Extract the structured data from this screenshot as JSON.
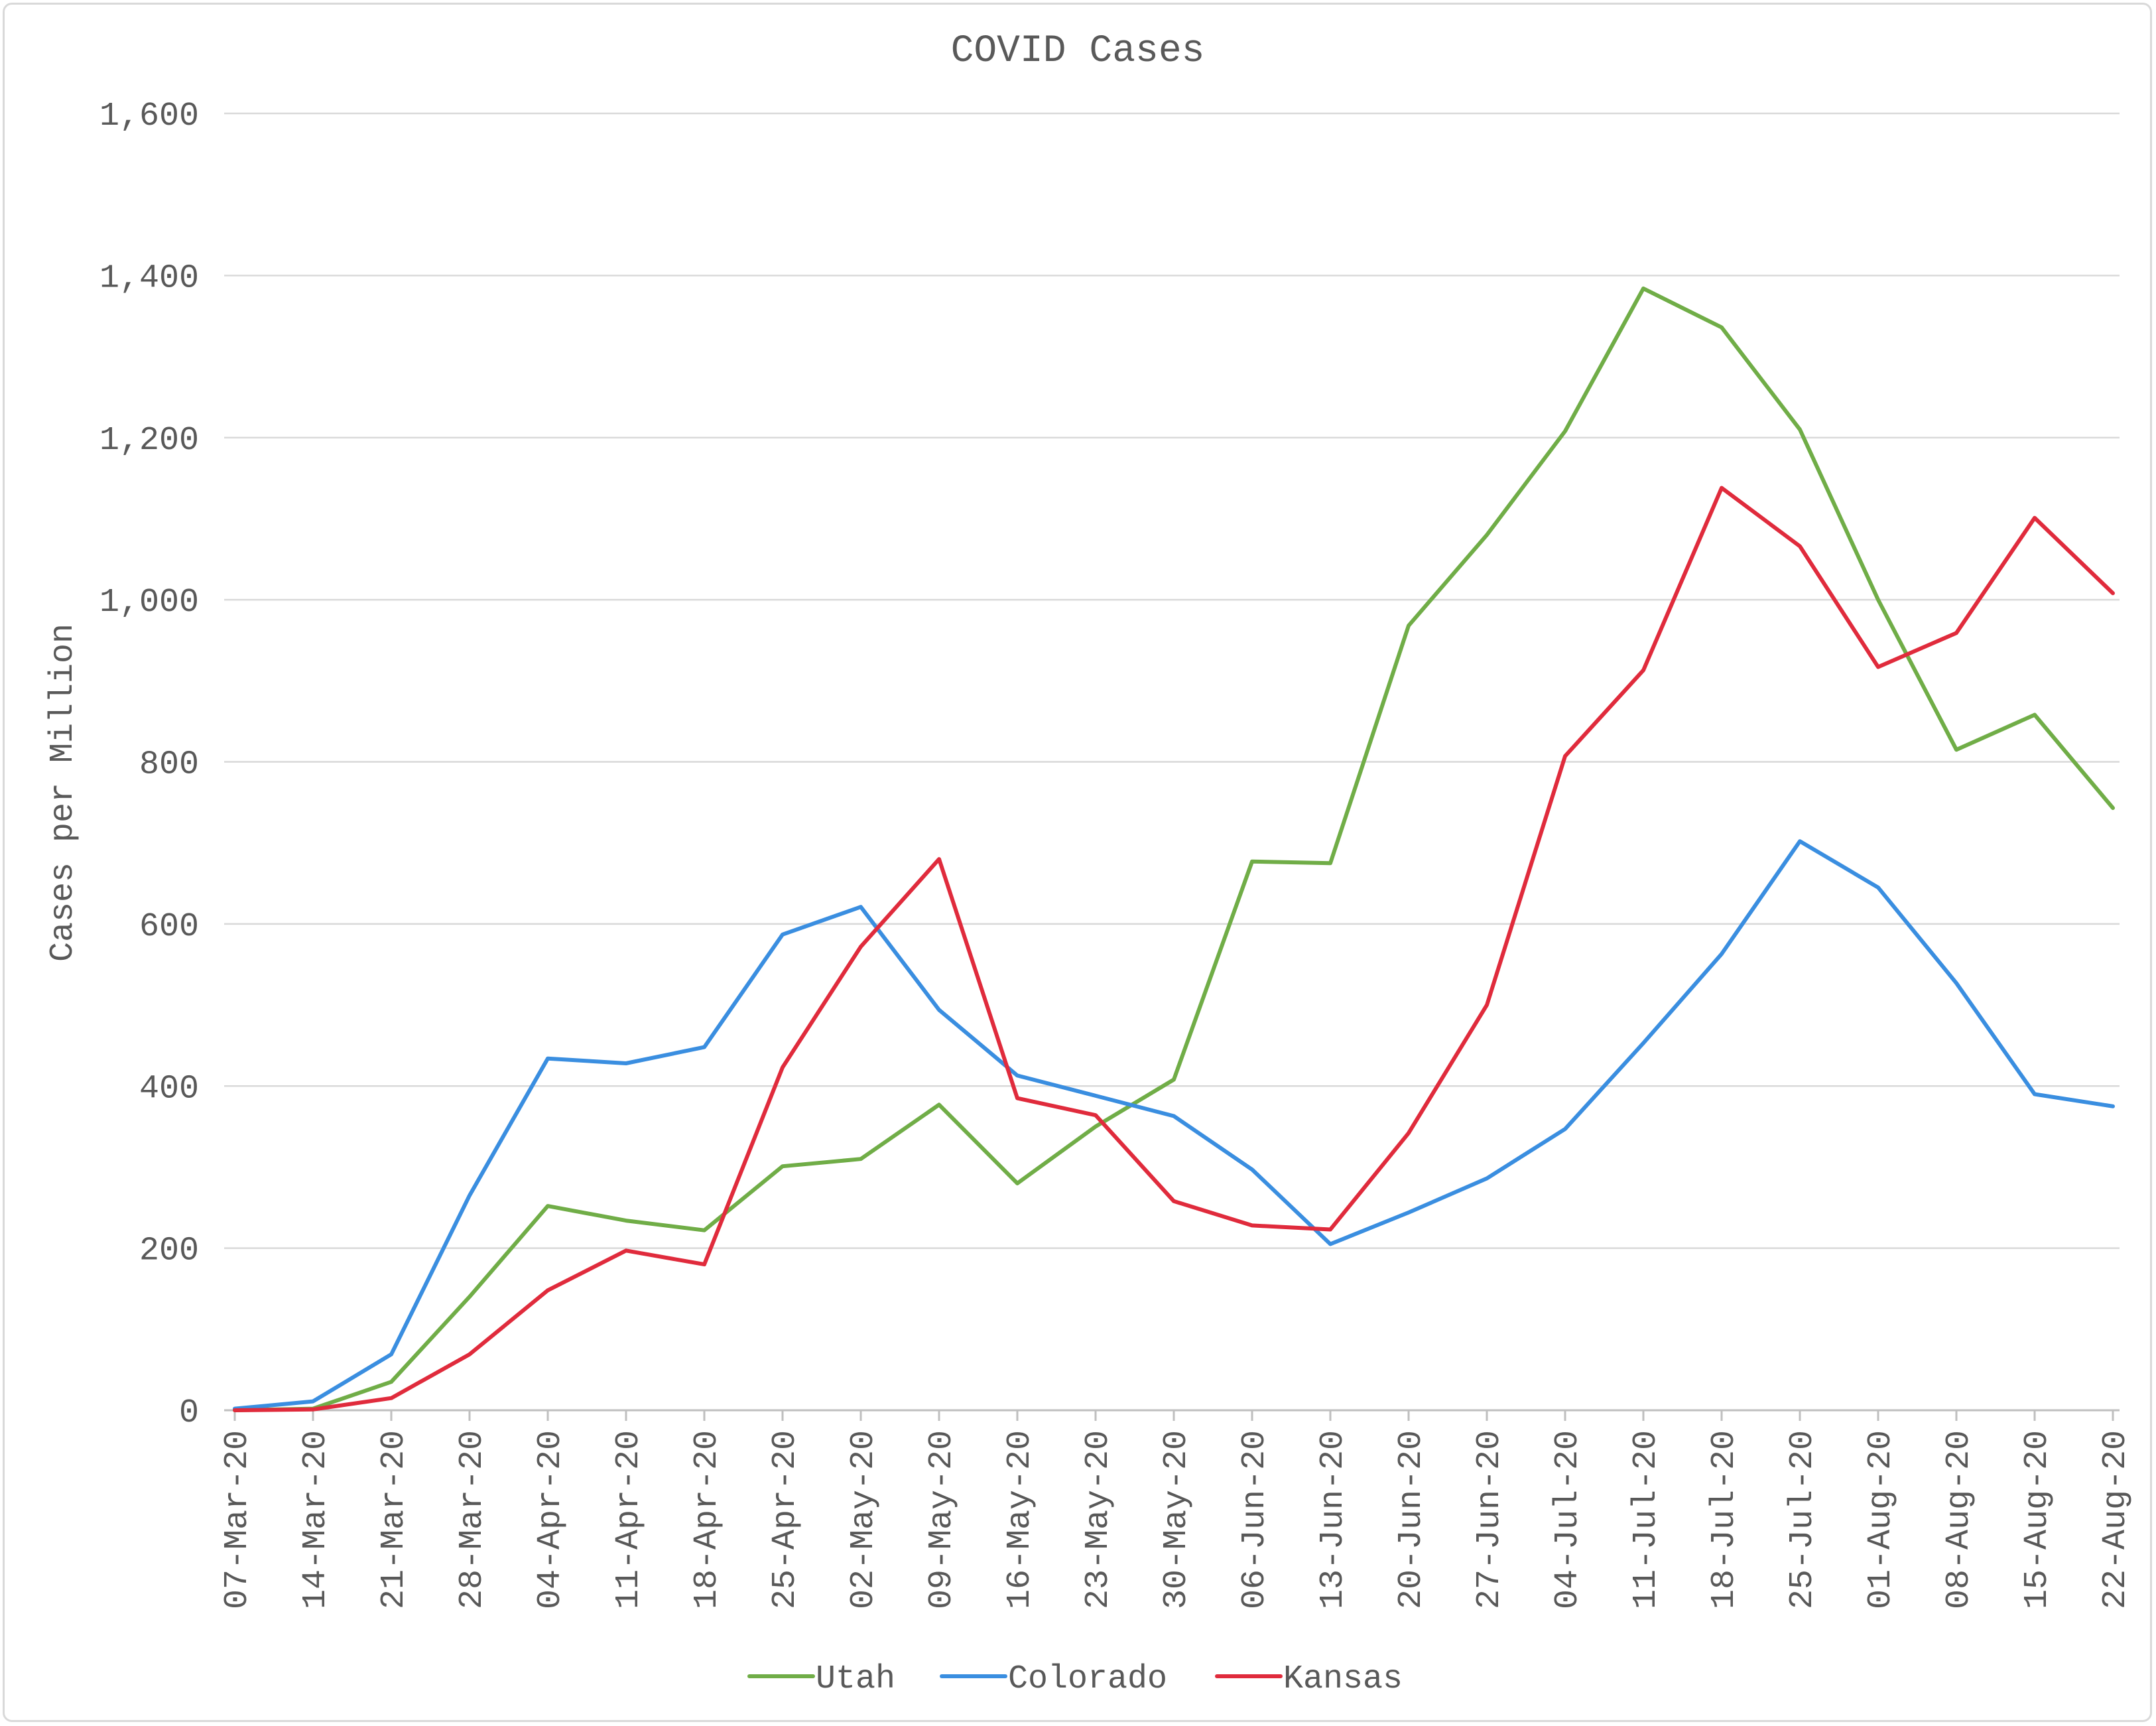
{
  "chart_data": {
    "type": "line",
    "title": "COVID Cases",
    "xlabel": "",
    "ylabel": "Cases per Million",
    "ylim": [
      0,
      1600
    ],
    "yticks": [
      "0",
      "200",
      "400",
      "600",
      "800",
      "1,000",
      "1,200",
      "1,400",
      "1,600"
    ],
    "ytick_values": [
      0,
      200,
      400,
      600,
      800,
      1000,
      1200,
      1400,
      1600
    ],
    "grid": true,
    "legend_position": "bottom",
    "categories": [
      "07-Mar-20",
      "14-Mar-20",
      "21-Mar-20",
      "28-Mar-20",
      "04-Apr-20",
      "11-Apr-20",
      "18-Apr-20",
      "25-Apr-20",
      "02-May-20",
      "09-May-20",
      "16-May-20",
      "23-May-20",
      "30-May-20",
      "06-Jun-20",
      "13-Jun-20",
      "20-Jun-20",
      "27-Jun-20",
      "04-Jul-20",
      "11-Jul-20",
      "18-Jul-20",
      "25-Jul-20",
      "01-Aug-20",
      "08-Aug-20",
      "15-Aug-20",
      "22-Aug-20"
    ],
    "series": [
      {
        "name": "Utah",
        "color": "#70ad47",
        "values": [
          0,
          2,
          35,
          140,
          252,
          234,
          222,
          301,
          310,
          377,
          280,
          350,
          408,
          677,
          675,
          968,
          1080,
          1208,
          1384,
          1336,
          1210,
          1000,
          815,
          858,
          743
        ]
      },
      {
        "name": "Colorado",
        "color": "#3a8ee0",
        "values": [
          2,
          11,
          69,
          265,
          434,
          428,
          448,
          587,
          621,
          494,
          413,
          388,
          363,
          297,
          205,
          244,
          286,
          347,
          453,
          563,
          702,
          645,
          527,
          390,
          375
        ]
      },
      {
        "name": "Kansas",
        "color": "#e02b3c",
        "values": [
          0,
          1,
          15,
          69,
          148,
          197,
          180,
          423,
          572,
          680,
          385,
          364,
          258,
          228,
          223,
          342,
          500,
          807,
          913,
          1138,
          1066,
          917,
          959,
          1101,
          1008
        ]
      }
    ]
  }
}
